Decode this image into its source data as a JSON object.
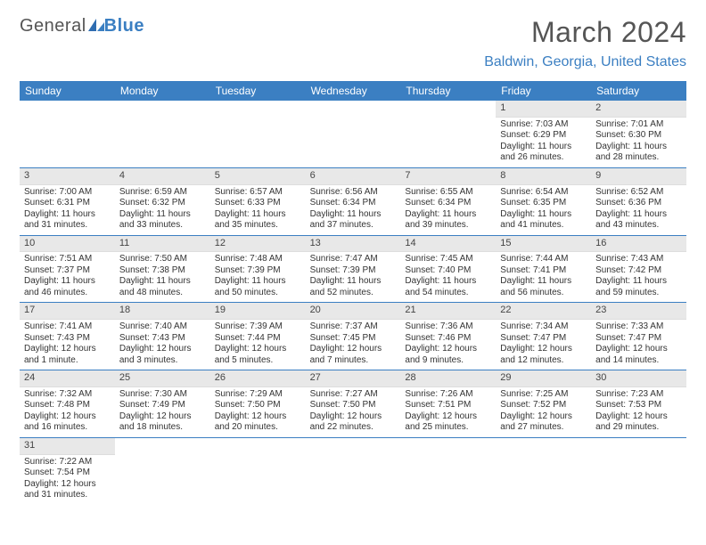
{
  "brand": {
    "part1": "General",
    "part2": "Blue"
  },
  "title": "March 2024",
  "location": "Baldwin, Georgia, United States",
  "colors": {
    "header_bg": "#3b7fc2",
    "header_text": "#ffffff",
    "daynum_bg": "#e8e8e8",
    "text": "#333333",
    "brand_gray": "#555555",
    "brand_blue": "#3b7fc2"
  },
  "day_headers": [
    "Sunday",
    "Monday",
    "Tuesday",
    "Wednesday",
    "Thursday",
    "Friday",
    "Saturday"
  ],
  "weeks": [
    [
      null,
      null,
      null,
      null,
      null,
      {
        "d": "1",
        "sr": "Sunrise: 7:03 AM",
        "ss": "Sunset: 6:29 PM",
        "dl1": "Daylight: 11 hours",
        "dl2": "and 26 minutes."
      },
      {
        "d": "2",
        "sr": "Sunrise: 7:01 AM",
        "ss": "Sunset: 6:30 PM",
        "dl1": "Daylight: 11 hours",
        "dl2": "and 28 minutes."
      }
    ],
    [
      {
        "d": "3",
        "sr": "Sunrise: 7:00 AM",
        "ss": "Sunset: 6:31 PM",
        "dl1": "Daylight: 11 hours",
        "dl2": "and 31 minutes."
      },
      {
        "d": "4",
        "sr": "Sunrise: 6:59 AM",
        "ss": "Sunset: 6:32 PM",
        "dl1": "Daylight: 11 hours",
        "dl2": "and 33 minutes."
      },
      {
        "d": "5",
        "sr": "Sunrise: 6:57 AM",
        "ss": "Sunset: 6:33 PM",
        "dl1": "Daylight: 11 hours",
        "dl2": "and 35 minutes."
      },
      {
        "d": "6",
        "sr": "Sunrise: 6:56 AM",
        "ss": "Sunset: 6:34 PM",
        "dl1": "Daylight: 11 hours",
        "dl2": "and 37 minutes."
      },
      {
        "d": "7",
        "sr": "Sunrise: 6:55 AM",
        "ss": "Sunset: 6:34 PM",
        "dl1": "Daylight: 11 hours",
        "dl2": "and 39 minutes."
      },
      {
        "d": "8",
        "sr": "Sunrise: 6:54 AM",
        "ss": "Sunset: 6:35 PM",
        "dl1": "Daylight: 11 hours",
        "dl2": "and 41 minutes."
      },
      {
        "d": "9",
        "sr": "Sunrise: 6:52 AM",
        "ss": "Sunset: 6:36 PM",
        "dl1": "Daylight: 11 hours",
        "dl2": "and 43 minutes."
      }
    ],
    [
      {
        "d": "10",
        "sr": "Sunrise: 7:51 AM",
        "ss": "Sunset: 7:37 PM",
        "dl1": "Daylight: 11 hours",
        "dl2": "and 46 minutes."
      },
      {
        "d": "11",
        "sr": "Sunrise: 7:50 AM",
        "ss": "Sunset: 7:38 PM",
        "dl1": "Daylight: 11 hours",
        "dl2": "and 48 minutes."
      },
      {
        "d": "12",
        "sr": "Sunrise: 7:48 AM",
        "ss": "Sunset: 7:39 PM",
        "dl1": "Daylight: 11 hours",
        "dl2": "and 50 minutes."
      },
      {
        "d": "13",
        "sr": "Sunrise: 7:47 AM",
        "ss": "Sunset: 7:39 PM",
        "dl1": "Daylight: 11 hours",
        "dl2": "and 52 minutes."
      },
      {
        "d": "14",
        "sr": "Sunrise: 7:45 AM",
        "ss": "Sunset: 7:40 PM",
        "dl1": "Daylight: 11 hours",
        "dl2": "and 54 minutes."
      },
      {
        "d": "15",
        "sr": "Sunrise: 7:44 AM",
        "ss": "Sunset: 7:41 PM",
        "dl1": "Daylight: 11 hours",
        "dl2": "and 56 minutes."
      },
      {
        "d": "16",
        "sr": "Sunrise: 7:43 AM",
        "ss": "Sunset: 7:42 PM",
        "dl1": "Daylight: 11 hours",
        "dl2": "and 59 minutes."
      }
    ],
    [
      {
        "d": "17",
        "sr": "Sunrise: 7:41 AM",
        "ss": "Sunset: 7:43 PM",
        "dl1": "Daylight: 12 hours",
        "dl2": "and 1 minute."
      },
      {
        "d": "18",
        "sr": "Sunrise: 7:40 AM",
        "ss": "Sunset: 7:43 PM",
        "dl1": "Daylight: 12 hours",
        "dl2": "and 3 minutes."
      },
      {
        "d": "19",
        "sr": "Sunrise: 7:39 AM",
        "ss": "Sunset: 7:44 PM",
        "dl1": "Daylight: 12 hours",
        "dl2": "and 5 minutes."
      },
      {
        "d": "20",
        "sr": "Sunrise: 7:37 AM",
        "ss": "Sunset: 7:45 PM",
        "dl1": "Daylight: 12 hours",
        "dl2": "and 7 minutes."
      },
      {
        "d": "21",
        "sr": "Sunrise: 7:36 AM",
        "ss": "Sunset: 7:46 PM",
        "dl1": "Daylight: 12 hours",
        "dl2": "and 9 minutes."
      },
      {
        "d": "22",
        "sr": "Sunrise: 7:34 AM",
        "ss": "Sunset: 7:47 PM",
        "dl1": "Daylight: 12 hours",
        "dl2": "and 12 minutes."
      },
      {
        "d": "23",
        "sr": "Sunrise: 7:33 AM",
        "ss": "Sunset: 7:47 PM",
        "dl1": "Daylight: 12 hours",
        "dl2": "and 14 minutes."
      }
    ],
    [
      {
        "d": "24",
        "sr": "Sunrise: 7:32 AM",
        "ss": "Sunset: 7:48 PM",
        "dl1": "Daylight: 12 hours",
        "dl2": "and 16 minutes."
      },
      {
        "d": "25",
        "sr": "Sunrise: 7:30 AM",
        "ss": "Sunset: 7:49 PM",
        "dl1": "Daylight: 12 hours",
        "dl2": "and 18 minutes."
      },
      {
        "d": "26",
        "sr": "Sunrise: 7:29 AM",
        "ss": "Sunset: 7:50 PM",
        "dl1": "Daylight: 12 hours",
        "dl2": "and 20 minutes."
      },
      {
        "d": "27",
        "sr": "Sunrise: 7:27 AM",
        "ss": "Sunset: 7:50 PM",
        "dl1": "Daylight: 12 hours",
        "dl2": "and 22 minutes."
      },
      {
        "d": "28",
        "sr": "Sunrise: 7:26 AM",
        "ss": "Sunset: 7:51 PM",
        "dl1": "Daylight: 12 hours",
        "dl2": "and 25 minutes."
      },
      {
        "d": "29",
        "sr": "Sunrise: 7:25 AM",
        "ss": "Sunset: 7:52 PM",
        "dl1": "Daylight: 12 hours",
        "dl2": "and 27 minutes."
      },
      {
        "d": "30",
        "sr": "Sunrise: 7:23 AM",
        "ss": "Sunset: 7:53 PM",
        "dl1": "Daylight: 12 hours",
        "dl2": "and 29 minutes."
      }
    ],
    [
      {
        "d": "31",
        "sr": "Sunrise: 7:22 AM",
        "ss": "Sunset: 7:54 PM",
        "dl1": "Daylight: 12 hours",
        "dl2": "and 31 minutes."
      },
      null,
      null,
      null,
      null,
      null,
      null
    ]
  ]
}
